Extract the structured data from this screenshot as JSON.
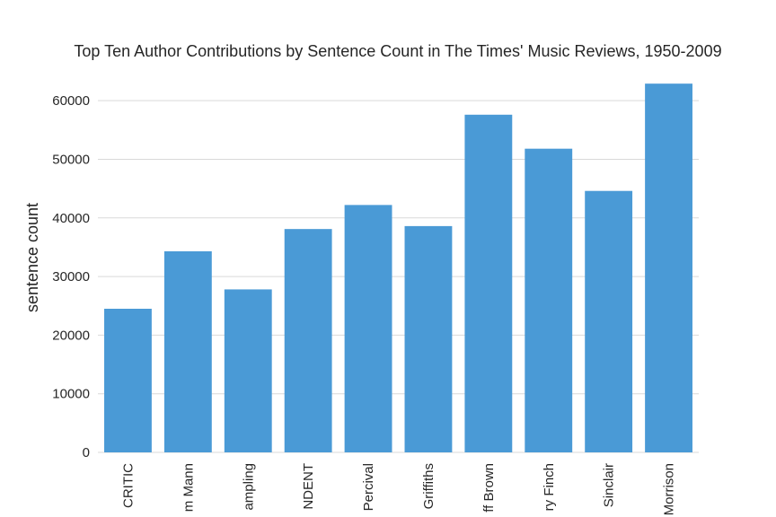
{
  "chart_data": {
    "type": "bar",
    "title": "Top Ten Author Contributions by Sentence Count in The Times' Music Reviews, 1950-2009",
    "xlabel": "",
    "ylabel": "sentence count",
    "categories": [
      "CRITIC",
      "m Mann",
      "ampling",
      "NDENT",
      "Percival",
      "Griffiths",
      "ff Brown",
      "ry Finch",
      "Sinclair",
      "Morrison"
    ],
    "values": [
      24500,
      34300,
      27800,
      38100,
      42200,
      38600,
      57600,
      51800,
      44600,
      62900
    ],
    "yticks": [
      0,
      10000,
      20000,
      30000,
      40000,
      50000,
      60000
    ],
    "ylim": [
      0,
      64000
    ],
    "grid": true,
    "bar_color": "#4a9ad6"
  }
}
